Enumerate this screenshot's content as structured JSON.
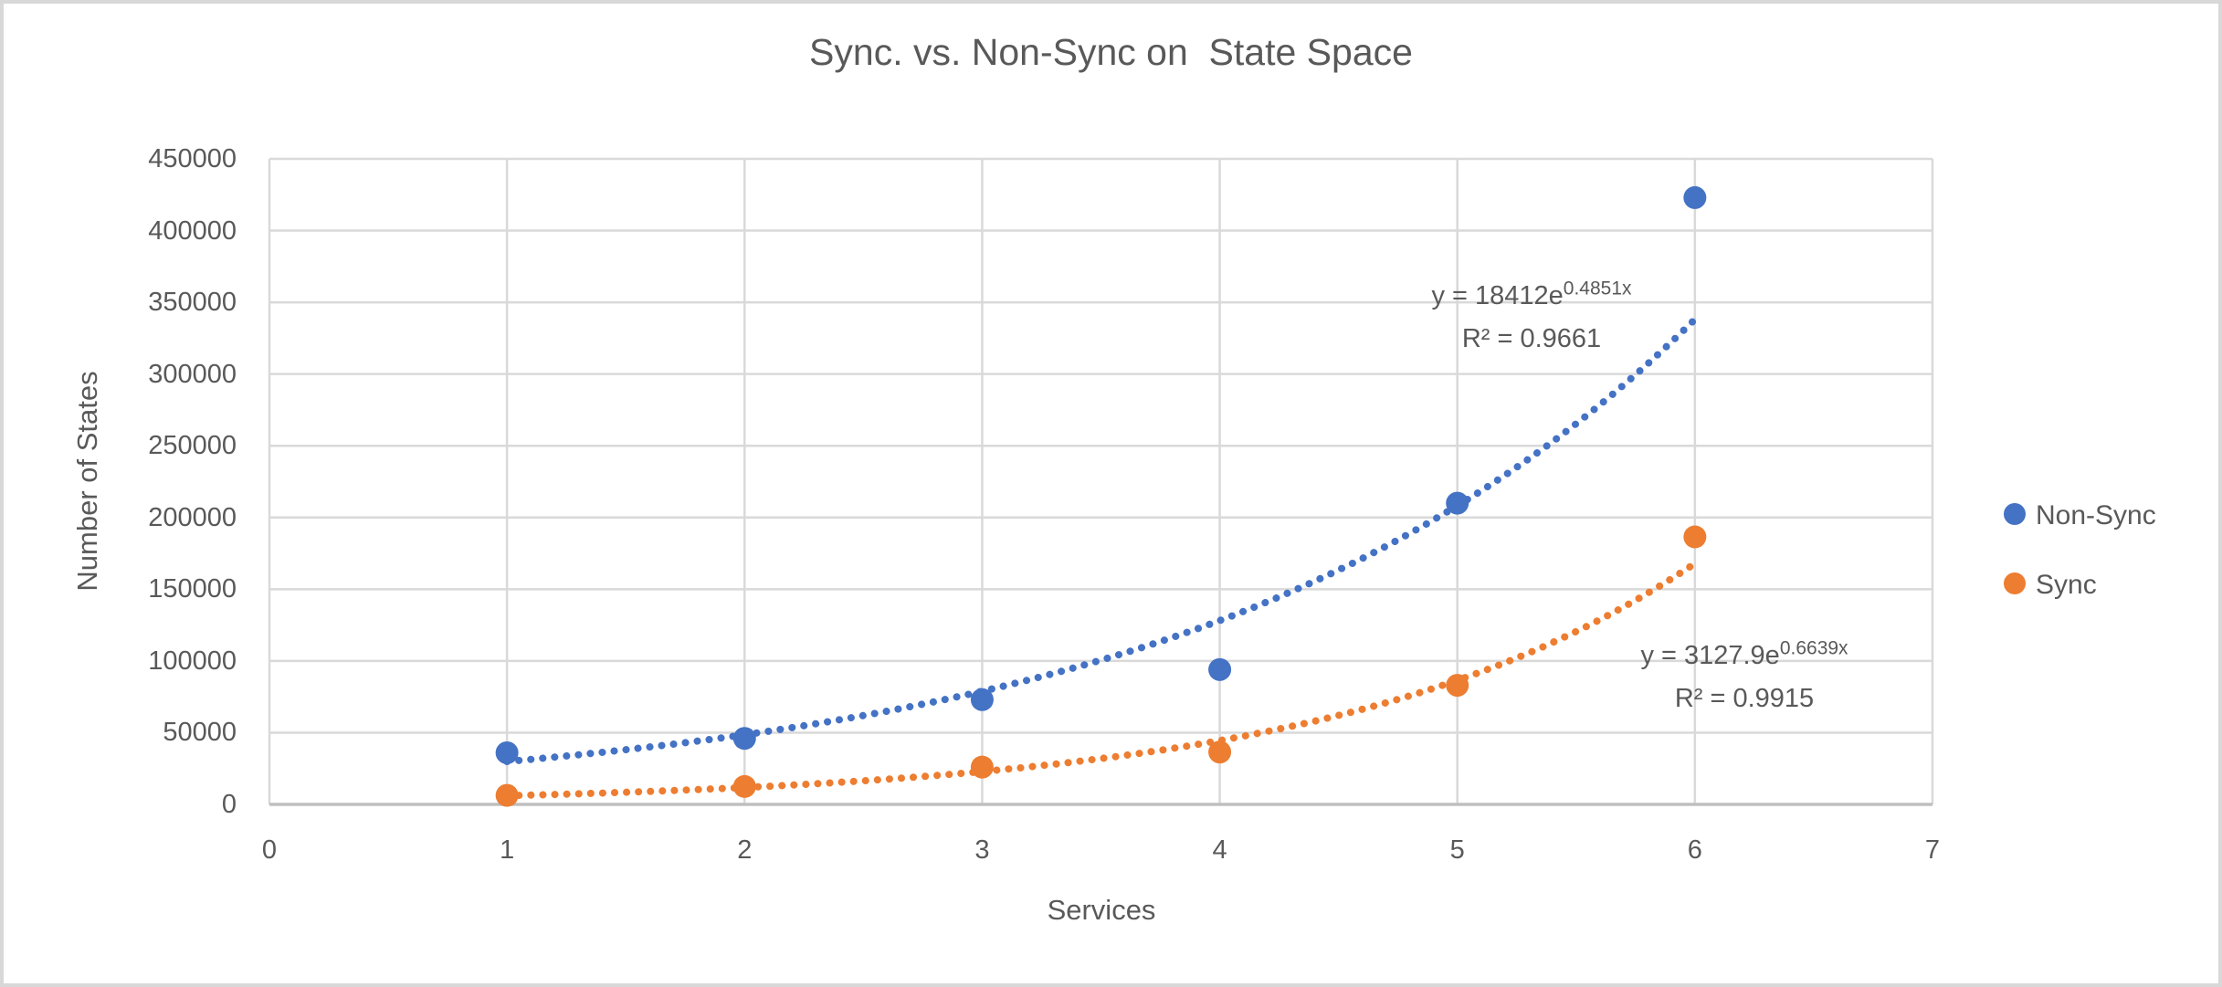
{
  "colors": {
    "non_sync": "#4472C4",
    "sync": "#ED7D31",
    "text": "#595959",
    "gridline": "#D9D9D9",
    "axis_line": "#BFBFBF",
    "frame": "#D8D8D8",
    "background": "#FFFFFF"
  },
  "chart_data": {
    "type": "scatter",
    "title": "Sync. vs. Non-Sync on  State Space",
    "xlabel": "Services",
    "ylabel": "Number of States",
    "xlim": [
      0,
      7
    ],
    "ylim": [
      0,
      450000
    ],
    "x_ticks": [
      0,
      1,
      2,
      3,
      4,
      5,
      6,
      7
    ],
    "y_ticks": [
      0,
      50000,
      100000,
      150000,
      200000,
      250000,
      300000,
      350000,
      400000,
      450000
    ],
    "grid": true,
    "legend_position": "right",
    "marker_style": "filled-circle",
    "trendline_style": "dotted",
    "series": [
      {
        "name": "Non-Sync",
        "color": "#4472C4",
        "x": [
          1,
          2,
          3,
          4,
          5,
          6
        ],
        "values": [
          36000,
          46000,
          73000,
          94000,
          210000,
          423000
        ],
        "trendline": {
          "type": "exponential",
          "a": 18412,
          "b": 0.4851,
          "x_range": [
            1,
            6
          ],
          "equation_base": "y = 18412e",
          "equation_exponent": "0.4851x",
          "r2_label": "R² = 0.9661"
        }
      },
      {
        "name": "Sync",
        "color": "#ED7D31",
        "x": [
          1,
          2,
          3,
          4,
          5,
          6
        ],
        "values": [
          6300,
          12500,
          26000,
          36500,
          83000,
          186500
        ],
        "trendline": {
          "type": "exponential",
          "a": 3127.9,
          "b": 0.6639,
          "x_range": [
            1,
            6
          ],
          "equation_base": "y = 3127.9e",
          "equation_exponent": "0.6639x",
          "r2_label": "R² = 0.9915"
        }
      }
    ]
  }
}
